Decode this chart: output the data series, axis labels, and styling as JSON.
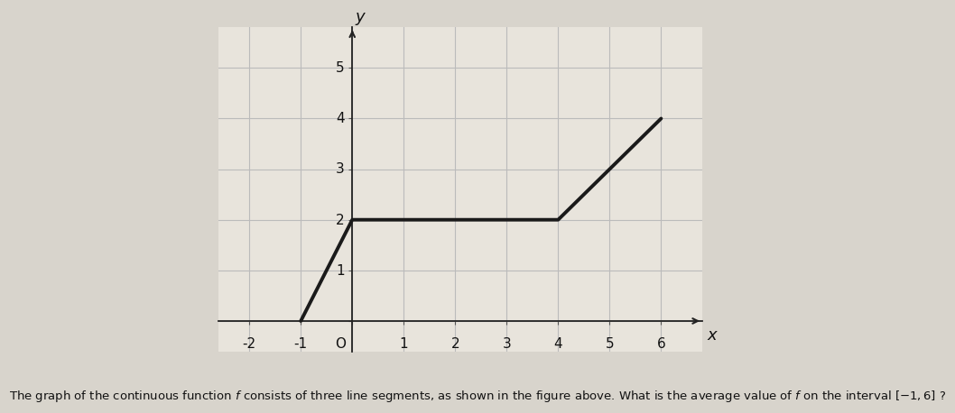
{
  "line_x": [
    -1,
    0,
    4,
    6
  ],
  "line_y": [
    0,
    2,
    2,
    4
  ],
  "line_color": "#1a1a1a",
  "line_width": 2.8,
  "xlim": [
    -2.6,
    6.8
  ],
  "ylim": [
    -0.6,
    5.8
  ],
  "xticks": [
    -2,
    -1,
    1,
    2,
    3,
    4,
    5,
    6
  ],
  "yticks": [
    1,
    2,
    3,
    4,
    5
  ],
  "xlabel": "x",
  "ylabel": "y",
  "grid_color": "#bbbbbb",
  "background_color": "#d8d4cc",
  "plot_bg_color": "#e8e4dc",
  "tick_label_fontsize": 11,
  "axis_label_fontsize": 13,
  "caption": "The graph of the continuous function f consists of three line segments, as shown in the figure above. What is the average value of f on the interval −1, 6① ?",
  "caption_fontsize": 9.5,
  "origin_label": "O"
}
